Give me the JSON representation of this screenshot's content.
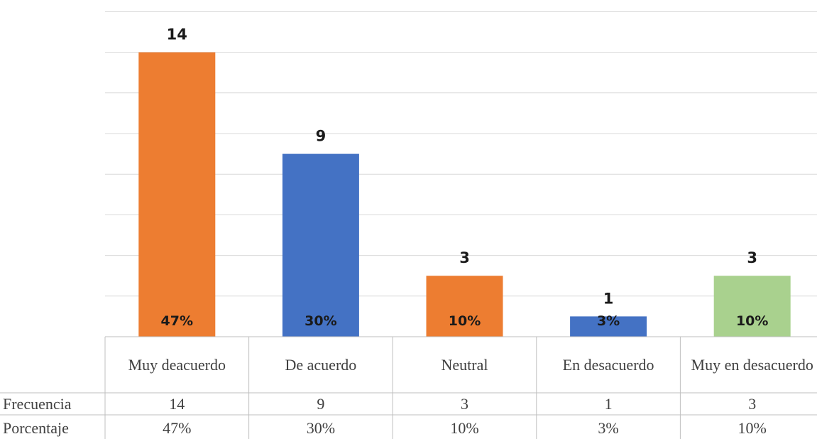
{
  "chart_data": {
    "type": "bar",
    "categories": [
      "Muy deacuerdo",
      "De acuerdo",
      "Neutral",
      "En desacuerdo",
      "Muy en desacuerdo"
    ],
    "values": [
      14,
      9,
      3,
      1,
      3
    ],
    "percent_labels": [
      "47%",
      "30%",
      "10%",
      "3%",
      "10%"
    ],
    "bar_colors": [
      "#ed7d31",
      "#4472c4",
      "#ed7d31",
      "#4472c4",
      "#a9d18e"
    ],
    "ylim": [
      0,
      16
    ],
    "grid": true,
    "title": "",
    "xlabel": "",
    "ylabel": "",
    "data_table": {
      "rows": [
        {
          "label": "Frecuencia",
          "values": [
            "14",
            "9",
            "3",
            "1",
            "3"
          ]
        },
        {
          "label": "Porcentaje",
          "values": [
            "47%",
            "30%",
            "10%",
            "3%",
            "10%"
          ]
        }
      ]
    }
  }
}
